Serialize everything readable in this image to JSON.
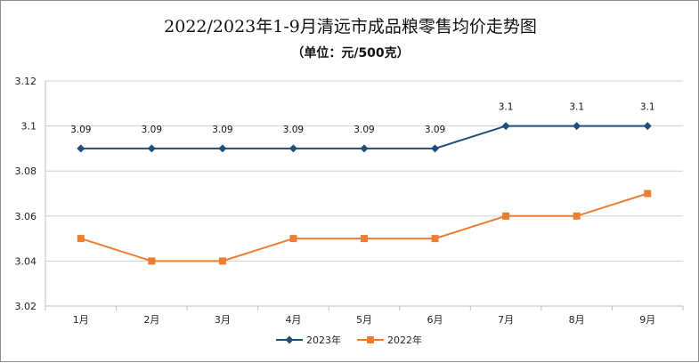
{
  "chart_data": {
    "type": "line",
    "title": "2022/2023年1-9月清远市成品粮零售均价走势图",
    "subtitle": "（单位：元/500克）",
    "categories": [
      "1月",
      "2月",
      "3月",
      "4月",
      "5月",
      "6月",
      "7月",
      "8月",
      "9月"
    ],
    "ylim": [
      3.02,
      3.12
    ],
    "yticks": [
      "3.02",
      "3.04",
      "3.06",
      "3.08",
      "3.1",
      "3.12"
    ],
    "grid": true,
    "legend": "bottom",
    "series": [
      {
        "name": "2023年",
        "color": "#1f4e79",
        "marker": "diamond",
        "values": [
          3.09,
          3.09,
          3.09,
          3.09,
          3.09,
          3.09,
          3.1,
          3.1,
          3.1
        ],
        "labels": [
          "3.09",
          "3.09",
          "3.09",
          "3.09",
          "3.09",
          "3.09",
          "3.1",
          "3.1",
          "3.1"
        ]
      },
      {
        "name": "2022年",
        "color": "#ed7d31",
        "marker": "square",
        "values": [
          3.05,
          3.04,
          3.04,
          3.05,
          3.05,
          3.05,
          3.06,
          3.06,
          3.07
        ]
      }
    ]
  }
}
